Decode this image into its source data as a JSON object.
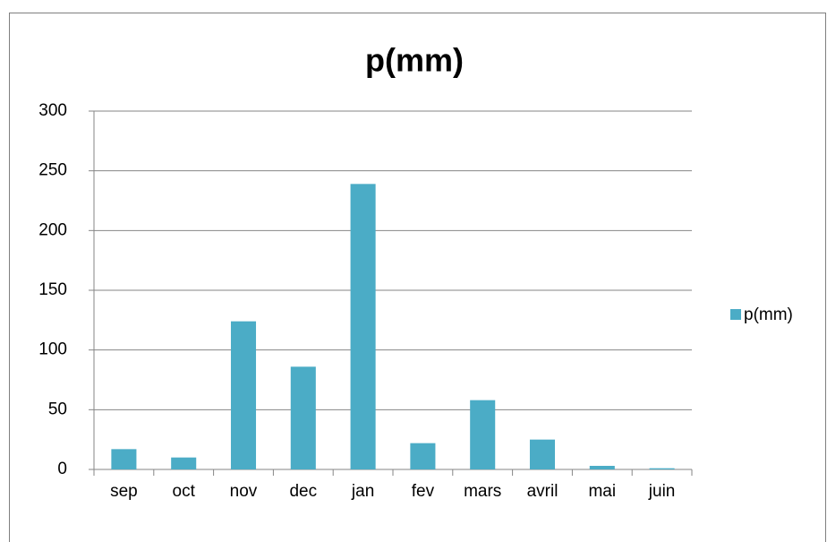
{
  "chart_data": {
    "type": "bar",
    "title": "p(mm)",
    "categories": [
      "sep",
      "oct",
      "nov",
      "dec",
      "jan",
      "fev",
      "mars",
      "avril",
      "mai",
      "juin"
    ],
    "series": [
      {
        "name": "p(mm)",
        "color": "#4bacc6",
        "values": [
          17,
          10,
          124,
          86,
          239,
          22,
          58,
          25,
          3,
          1
        ]
      }
    ],
    "ylim": [
      0,
      300
    ],
    "yticks": [
      0,
      50,
      100,
      150,
      200,
      250,
      300
    ],
    "grid": true,
    "legend": "right"
  }
}
